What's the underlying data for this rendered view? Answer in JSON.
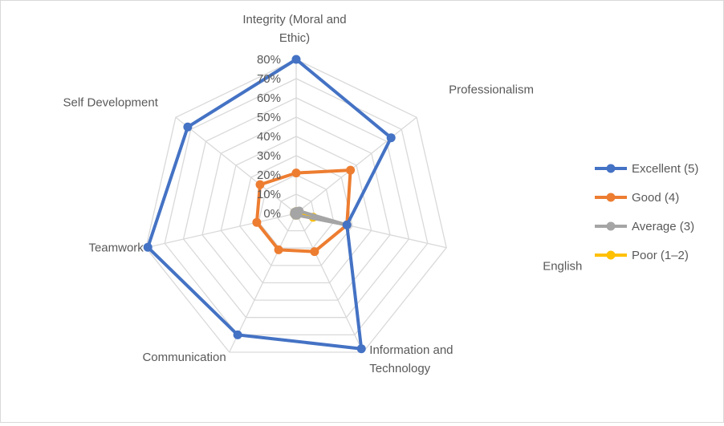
{
  "chart_data": {
    "type": "radar",
    "title": "",
    "categories": [
      "Integrity (Moral and Ethic)",
      "Professionalism",
      "English",
      "Information and Technology",
      "Communication",
      "Teamwork",
      "Self Development"
    ],
    "category_label_lines": [
      [
        "Integrity (Moral and",
        "Ethic)"
      ],
      [
        "Professionalism"
      ],
      [
        "English"
      ],
      [
        "Information and",
        "Technology"
      ],
      [
        "Communication"
      ],
      [
        "Teamwork"
      ],
      [
        "Self Development"
      ]
    ],
    "axis": {
      "min": 0,
      "max": 80,
      "step": 10,
      "tick_labels": [
        "0%",
        "10%",
        "20%",
        "30%",
        "40%",
        "50%",
        "60%",
        "70%",
        "80%"
      ],
      "grid": true
    },
    "legend_position": "right",
    "series": [
      {
        "name": "Excellent (5)",
        "color": "#4472c4",
        "values": [
          80,
          63,
          27,
          78,
          70,
          79,
          72
        ]
      },
      {
        "name": "Good (4)",
        "color": "#ed7d31",
        "values": [
          21,
          36,
          27,
          22,
          21,
          21,
          24
        ]
      },
      {
        "name": "Average (3)",
        "color": "#a5a5a5",
        "values": [
          1,
          2,
          27,
          1,
          1,
          1,
          1
        ]
      },
      {
        "name": "Poor (1–2)",
        "color": "#ffc000",
        "values": [
          1,
          1,
          9,
          1,
          1,
          1,
          1
        ]
      }
    ],
    "label_color": "#595959",
    "grid_color": "#d9d9d9"
  }
}
